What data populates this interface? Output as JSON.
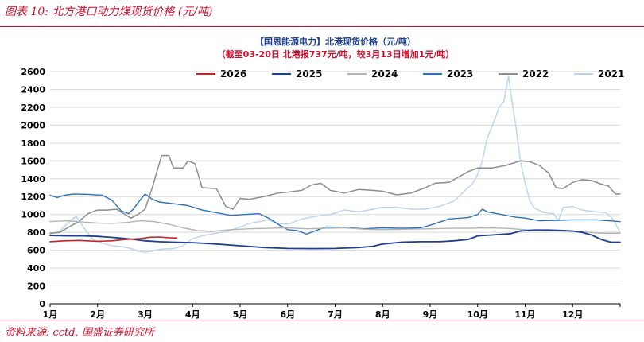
{
  "figure": {
    "caption": "图表 10:  北方港口动力煤现货价格 (元/吨)",
    "source": "资料来源: cctd, 国盛证券研究所"
  },
  "chart_data": {
    "type": "line",
    "title": "【国恩能源电力】北港现货价格（元/吨）",
    "subtitle": "（截至03-20日 北港报737元/吨，较3月13日增加1元/吨）",
    "xlabel": "",
    "ylabel": "",
    "x_ticks": [
      "1月",
      "2月",
      "3月",
      "4月",
      "5月",
      "6月",
      "7月",
      "8月",
      "9月",
      "10月",
      "11月",
      "12月"
    ],
    "ylim": [
      0,
      2600
    ],
    "y_ticks": [
      0,
      200,
      400,
      600,
      800,
      1000,
      1200,
      1400,
      1600,
      1800,
      2000,
      2200,
      2400,
      2600
    ],
    "grid": true,
    "legend_position": "top",
    "series": [
      {
        "name": "2026",
        "color": "#c0272d",
        "width": 1.6,
        "points": [
          [
            1.0,
            695
          ],
          [
            1.3,
            705
          ],
          [
            1.6,
            710
          ],
          [
            2.0,
            700
          ],
          [
            2.3,
            705
          ],
          [
            2.6,
            720
          ],
          [
            2.9,
            730
          ],
          [
            3.1,
            745
          ],
          [
            3.3,
            748
          ],
          [
            3.5,
            740
          ],
          [
            3.6,
            737
          ],
          [
            3.66,
            737
          ]
        ]
      },
      {
        "name": "2025",
        "color": "#1f3f8f",
        "width": 1.8,
        "points": [
          [
            1.0,
            765
          ],
          [
            1.4,
            760
          ],
          [
            1.7,
            760
          ],
          [
            2.0,
            755
          ],
          [
            2.4,
            740
          ],
          [
            2.7,
            725
          ],
          [
            3.0,
            705
          ],
          [
            3.3,
            695
          ],
          [
            3.6,
            690
          ],
          [
            4.0,
            685
          ],
          [
            4.5,
            670
          ],
          [
            5.0,
            650
          ],
          [
            5.5,
            630
          ],
          [
            6.0,
            620
          ],
          [
            6.5,
            618
          ],
          [
            7.0,
            620
          ],
          [
            7.5,
            630
          ],
          [
            7.8,
            645
          ],
          [
            8.0,
            670
          ],
          [
            8.4,
            690
          ],
          [
            8.8,
            695
          ],
          [
            9.2,
            695
          ],
          [
            9.5,
            705
          ],
          [
            9.8,
            720
          ],
          [
            10.0,
            760
          ],
          [
            10.3,
            770
          ],
          [
            10.7,
            785
          ],
          [
            10.9,
            815
          ],
          [
            11.2,
            825
          ],
          [
            11.5,
            825
          ],
          [
            11.8,
            820
          ],
          [
            12.0,
            815
          ],
          [
            12.2,
            800
          ],
          [
            12.4,
            770
          ],
          [
            12.6,
            720
          ],
          [
            12.8,
            690
          ],
          [
            13.0,
            690
          ]
        ]
      },
      {
        "name": "2024",
        "color": "#b3b3b3",
        "width": 1.4,
        "points": [
          [
            1.0,
            920
          ],
          [
            1.3,
            930
          ],
          [
            1.6,
            920
          ],
          [
            2.0,
            905
          ],
          [
            2.3,
            900
          ],
          [
            2.6,
            910
          ],
          [
            2.9,
            930
          ],
          [
            3.2,
            920
          ],
          [
            3.5,
            890
          ],
          [
            3.8,
            850
          ],
          [
            4.1,
            820
          ],
          [
            4.4,
            810
          ],
          [
            4.8,
            830
          ],
          [
            5.2,
            840
          ],
          [
            5.6,
            845
          ],
          [
            6.0,
            850
          ],
          [
            6.4,
            840
          ],
          [
            6.8,
            845
          ],
          [
            7.2,
            850
          ],
          [
            7.6,
            835
          ],
          [
            8.0,
            830
          ],
          [
            8.5,
            835
          ],
          [
            9.0,
            840
          ],
          [
            9.4,
            845
          ],
          [
            9.8,
            845
          ],
          [
            10.2,
            850
          ],
          [
            10.6,
            845
          ],
          [
            11.0,
            830
          ],
          [
            11.4,
            820
          ],
          [
            11.8,
            815
          ],
          [
            12.2,
            805
          ],
          [
            12.6,
            790
          ],
          [
            13.0,
            790
          ]
        ]
      },
      {
        "name": "2023",
        "color": "#2e6fba",
        "width": 1.4,
        "points": [
          [
            1.0,
            1215
          ],
          [
            1.15,
            1190
          ],
          [
            1.3,
            1215
          ],
          [
            1.5,
            1230
          ],
          [
            1.8,
            1225
          ],
          [
            2.1,
            1215
          ],
          [
            2.3,
            1160
          ],
          [
            2.5,
            1040
          ],
          [
            2.65,
            1010
          ],
          [
            2.75,
            1060
          ],
          [
            2.85,
            1130
          ],
          [
            3.0,
            1230
          ],
          [
            3.15,
            1170
          ],
          [
            3.3,
            1140
          ],
          [
            3.6,
            1120
          ],
          [
            3.9,
            1100
          ],
          [
            4.2,
            1050
          ],
          [
            4.5,
            1020
          ],
          [
            4.8,
            990
          ],
          [
            5.1,
            1000
          ],
          [
            5.4,
            1010
          ],
          [
            5.6,
            960
          ],
          [
            5.8,
            890
          ],
          [
            6.0,
            830
          ],
          [
            6.2,
            820
          ],
          [
            6.4,
            780
          ],
          [
            6.6,
            820
          ],
          [
            6.8,
            860
          ],
          [
            7.2,
            855
          ],
          [
            7.6,
            840
          ],
          [
            8.0,
            850
          ],
          [
            8.4,
            845
          ],
          [
            8.8,
            850
          ],
          [
            9.0,
            880
          ],
          [
            9.4,
            950
          ],
          [
            9.8,
            965
          ],
          [
            10.0,
            1000
          ],
          [
            10.1,
            1060
          ],
          [
            10.2,
            1030
          ],
          [
            10.5,
            1000
          ],
          [
            10.8,
            970
          ],
          [
            11.0,
            960
          ],
          [
            11.3,
            930
          ],
          [
            11.7,
            935
          ],
          [
            12.0,
            940
          ],
          [
            12.5,
            940
          ],
          [
            13.0,
            920
          ]
        ]
      },
      {
        "name": "2022",
        "color": "#8c8c8c",
        "width": 1.5,
        "points": [
          [
            1.0,
            790
          ],
          [
            1.2,
            800
          ],
          [
            1.4,
            860
          ],
          [
            1.6,
            920
          ],
          [
            1.8,
            1010
          ],
          [
            2.0,
            1050
          ],
          [
            2.2,
            1050
          ],
          [
            2.4,
            1060
          ],
          [
            2.55,
            1010
          ],
          [
            2.7,
            960
          ],
          [
            2.85,
            1000
          ],
          [
            3.0,
            1060
          ],
          [
            3.15,
            1300
          ],
          [
            3.25,
            1480
          ],
          [
            3.35,
            1660
          ],
          [
            3.5,
            1660
          ],
          [
            3.6,
            1520
          ],
          [
            3.8,
            1520
          ],
          [
            3.9,
            1600
          ],
          [
            4.05,
            1570
          ],
          [
            4.2,
            1300
          ],
          [
            4.5,
            1290
          ],
          [
            4.7,
            1090
          ],
          [
            4.85,
            1060
          ],
          [
            5.0,
            1180
          ],
          [
            5.2,
            1170
          ],
          [
            5.5,
            1200
          ],
          [
            5.8,
            1240
          ],
          [
            6.0,
            1250
          ],
          [
            6.3,
            1270
          ],
          [
            6.5,
            1330
          ],
          [
            6.7,
            1350
          ],
          [
            6.9,
            1270
          ],
          [
            7.2,
            1240
          ],
          [
            7.5,
            1280
          ],
          [
            7.8,
            1270
          ],
          [
            8.0,
            1260
          ],
          [
            8.3,
            1220
          ],
          [
            8.6,
            1240
          ],
          [
            8.9,
            1300
          ],
          [
            9.1,
            1350
          ],
          [
            9.4,
            1360
          ],
          [
            9.6,
            1420
          ],
          [
            9.8,
            1480
          ],
          [
            10.0,
            1520
          ],
          [
            10.3,
            1520
          ],
          [
            10.6,
            1550
          ],
          [
            10.9,
            1600
          ],
          [
            11.1,
            1590
          ],
          [
            11.3,
            1550
          ],
          [
            11.5,
            1460
          ],
          [
            11.65,
            1300
          ],
          [
            11.8,
            1290
          ],
          [
            12.0,
            1360
          ],
          [
            12.2,
            1390
          ],
          [
            12.4,
            1380
          ],
          [
            12.6,
            1340
          ],
          [
            12.75,
            1320
          ],
          [
            12.9,
            1230
          ],
          [
            13.0,
            1230
          ]
        ]
      },
      {
        "name": "2021",
        "color": "#bcd3ec",
        "width": 1.4,
        "points": [
          [
            1.0,
            780
          ],
          [
            1.2,
            810
          ],
          [
            1.4,
            920
          ],
          [
            1.55,
            980
          ],
          [
            1.7,
            860
          ],
          [
            1.9,
            720
          ],
          [
            2.1,
            680
          ],
          [
            2.3,
            650
          ],
          [
            2.5,
            640
          ],
          [
            2.7,
            620
          ],
          [
            2.85,
            590
          ],
          [
            3.0,
            575
          ],
          [
            3.1,
            585
          ],
          [
            3.3,
            610
          ],
          [
            3.6,
            620
          ],
          [
            3.8,
            650
          ],
          [
            4.0,
            730
          ],
          [
            4.2,
            760
          ],
          [
            4.5,
            790
          ],
          [
            4.8,
            820
          ],
          [
            5.0,
            860
          ],
          [
            5.2,
            900
          ],
          [
            5.4,
            920
          ],
          [
            5.6,
            940
          ],
          [
            5.8,
            900
          ],
          [
            6.0,
            890
          ],
          [
            6.3,
            950
          ],
          [
            6.6,
            980
          ],
          [
            6.9,
            1000
          ],
          [
            7.2,
            1050
          ],
          [
            7.5,
            1030
          ],
          [
            7.8,
            1060
          ],
          [
            8.0,
            1080
          ],
          [
            8.3,
            1080
          ],
          [
            8.6,
            1060
          ],
          [
            8.9,
            1060
          ],
          [
            9.2,
            1090
          ],
          [
            9.5,
            1150
          ],
          [
            9.7,
            1250
          ],
          [
            9.9,
            1350
          ],
          [
            10.0,
            1450
          ],
          [
            10.1,
            1600
          ],
          [
            10.2,
            1850
          ],
          [
            10.35,
            2050
          ],
          [
            10.45,
            2200
          ],
          [
            10.55,
            2260
          ],
          [
            10.65,
            2550
          ],
          [
            10.7,
            2350
          ],
          [
            10.8,
            2000
          ],
          [
            10.9,
            1600
          ],
          [
            11.0,
            1350
          ],
          [
            11.1,
            1150
          ],
          [
            11.2,
            1070
          ],
          [
            11.4,
            1020
          ],
          [
            11.6,
            1010
          ],
          [
            11.7,
            930
          ],
          [
            11.8,
            1080
          ],
          [
            12.0,
            1090
          ],
          [
            12.2,
            1050
          ],
          [
            12.5,
            1030
          ],
          [
            12.7,
            1020
          ],
          [
            12.85,
            950
          ],
          [
            13.0,
            800
          ]
        ]
      }
    ]
  }
}
